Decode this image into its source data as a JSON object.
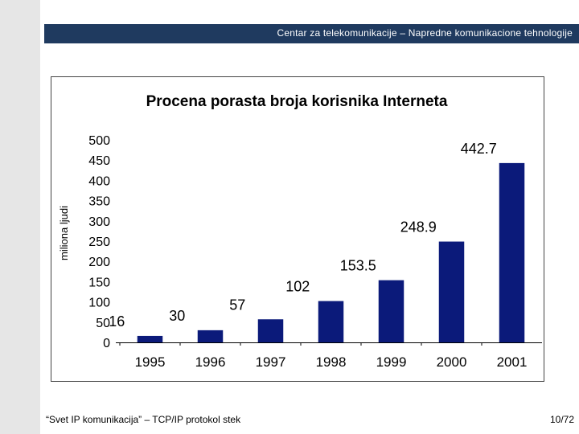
{
  "header": {
    "title": "Centar za telekomunikacije – Napredne komunikacione tehnologije"
  },
  "footer": {
    "left": "“Svet IP komunikacija” – TCP/IP protokol stek",
    "page": "10/72"
  },
  "colors": {
    "header_bg": "#1f3a5f",
    "bar": "#0b1a7a"
  },
  "chart_data": {
    "type": "bar",
    "title": "Procena porasta broja korisnika Interneta",
    "xlabel": "",
    "ylabel": "miliona ljudi",
    "categories": [
      "1995",
      "1996",
      "1997",
      "1998",
      "1999",
      "2000",
      "2001"
    ],
    "values": [
      16,
      30,
      57,
      102,
      153.5,
      248.9,
      442.7
    ],
    "value_labels": [
      "16",
      "30",
      "57",
      "102",
      "153.5",
      "248.9",
      "442.7"
    ],
    "yticks": [
      "0",
      "50",
      "100",
      "150",
      "200",
      "250",
      "300",
      "350",
      "400",
      "450",
      "500"
    ],
    "ylim": [
      0,
      500
    ],
    "grid": false,
    "legend": "none"
  }
}
